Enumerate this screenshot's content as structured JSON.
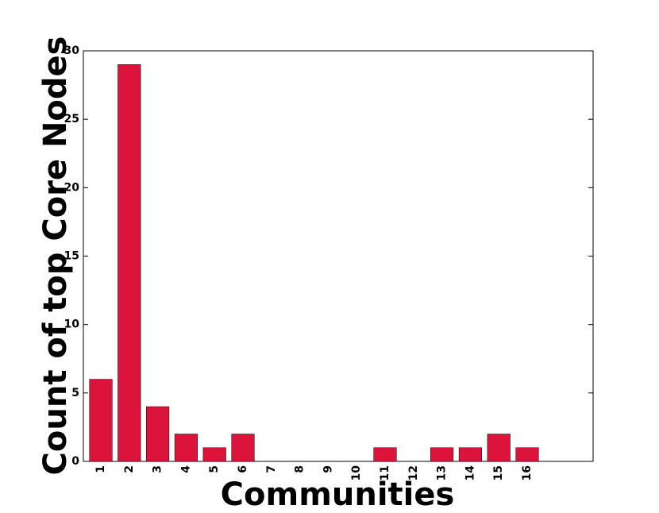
{
  "chart_data": {
    "type": "bar",
    "x_label": "Communities",
    "y_label": "Count of top Core Nodes",
    "categories": [
      "1",
      "2",
      "3",
      "4",
      "5",
      "6",
      "7",
      "8",
      "9",
      "10",
      "11",
      "12",
      "13",
      "14",
      "15",
      "16"
    ],
    "values": [
      6,
      29,
      4,
      2,
      1,
      2,
      0,
      0,
      0,
      0,
      1,
      0,
      1,
      1,
      2,
      1
    ],
    "color": "#dc143c",
    "ylim": [
      0,
      30
    ],
    "yticks": [
      0,
      5,
      10,
      15,
      20,
      25,
      30
    ],
    "grid": false
  }
}
